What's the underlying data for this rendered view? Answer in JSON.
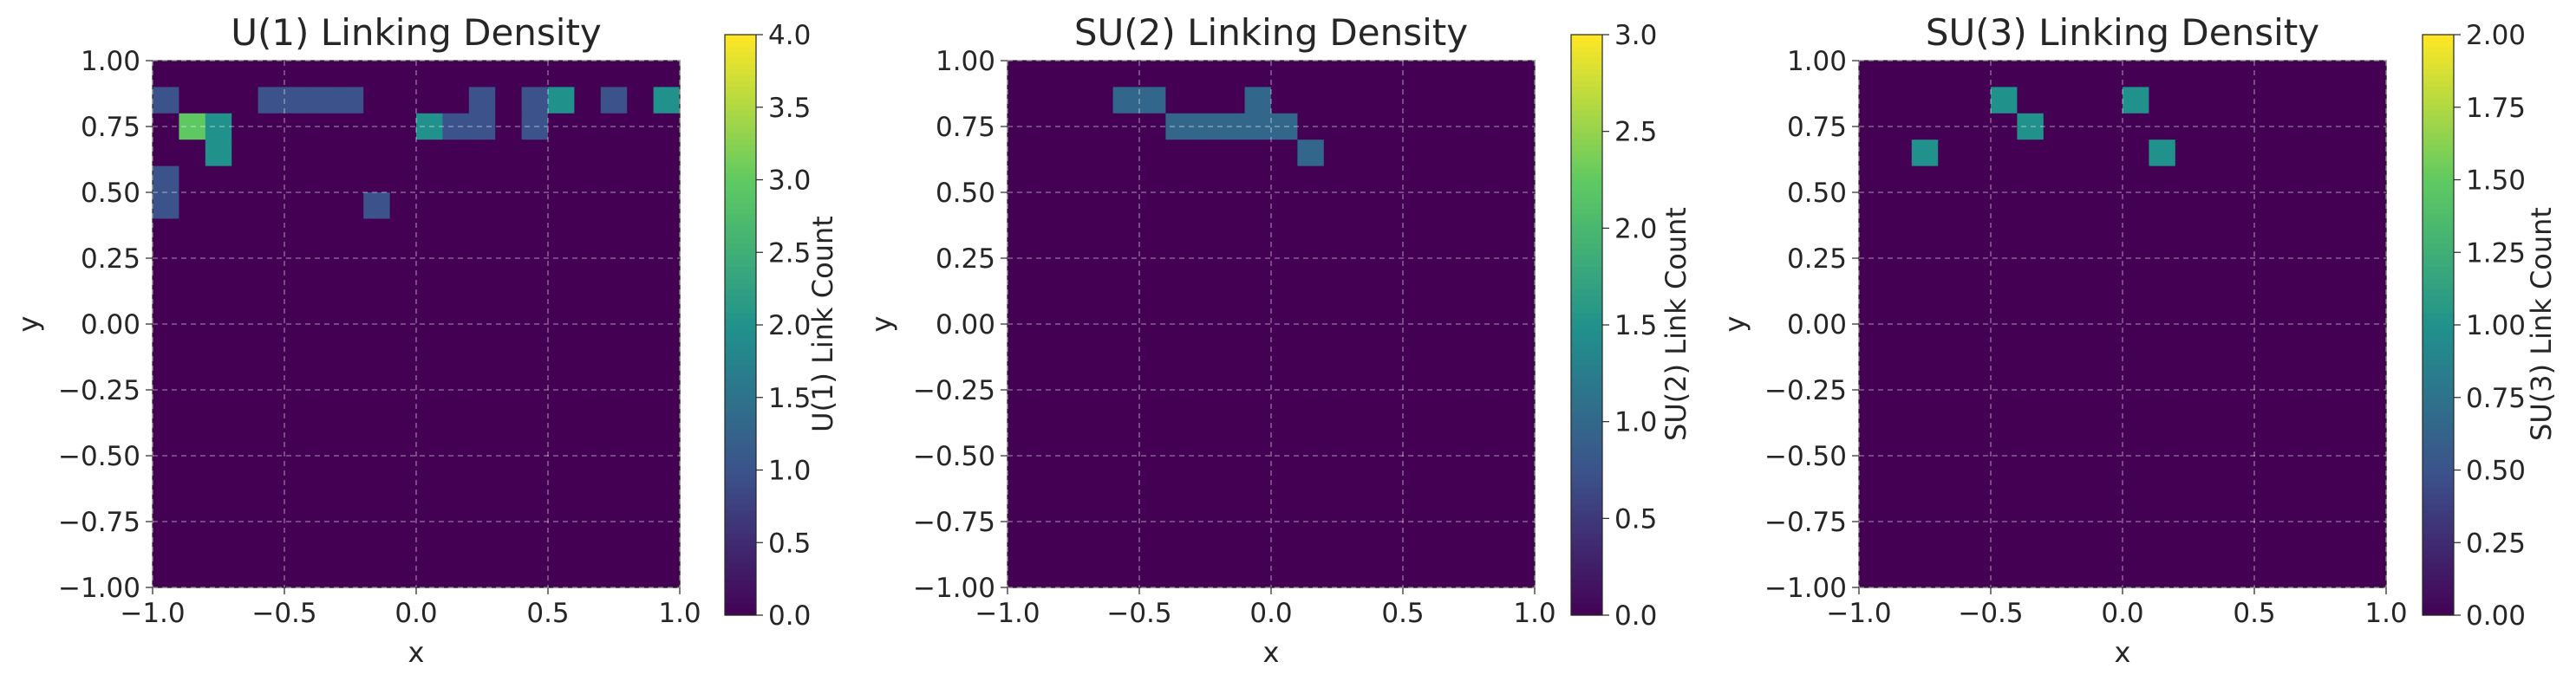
{
  "chart_data": [
    {
      "type": "heatmap",
      "title": "U(1) Linking Density",
      "xlabel": "x",
      "ylabel": "y",
      "colorbar_label": "U(1) Link Count",
      "colormap": "viridis",
      "vmin": 0,
      "vmax": 4,
      "xlim": [
        -1.0,
        1.0
      ],
      "ylim": [
        -1.0,
        1.0
      ],
      "bins": 20,
      "grid": true,
      "xticks": [
        "−1.0",
        "−0.5",
        "0.0",
        "0.5",
        "1.0"
      ],
      "yticks": [
        "−1.00",
        "−0.75",
        "−0.50",
        "−0.25",
        "0.00",
        "0.25",
        "0.50",
        "0.75",
        "1.00"
      ],
      "cbar_ticks": [
        "0.0",
        "0.5",
        "1.0",
        "1.5",
        "2.0",
        "2.5",
        "3.0",
        "3.5",
        "4.0"
      ],
      "grid_rows_top_to_bottom": [
        "00000000000000000000",
        "10001111000010120102",
        "03200000002110100000",
        "00200000000000000000",
        "10000000000000000000",
        "10000000100000000000",
        "00000000000000000000",
        "00000000000000000000",
        "00000000000000000000",
        "00000000000000000000",
        "00000000000000000000",
        "00000000000000000000",
        "00000000000000000000",
        "00000000000000000000",
        "00000000000000000000",
        "00000000000000000000",
        "00000000000000000000",
        "00000000000000000000",
        "00000000000000000000",
        "00000000000000000000"
      ]
    },
    {
      "type": "heatmap",
      "title": "SU(2) Linking Density",
      "xlabel": "x",
      "ylabel": "y",
      "colorbar_label": "SU(2) Link Count",
      "colormap": "viridis",
      "vmin": 0,
      "vmax": 3,
      "xlim": [
        -1.0,
        1.0
      ],
      "ylim": [
        -1.0,
        1.0
      ],
      "bins": 20,
      "grid": true,
      "xticks": [
        "−1.0",
        "−0.5",
        "0.0",
        "0.5",
        "1.0"
      ],
      "yticks": [
        "−1.00",
        "−0.75",
        "−0.50",
        "−0.25",
        "0.00",
        "0.25",
        "0.50",
        "0.75",
        "1.00"
      ],
      "cbar_ticks": [
        "0.0",
        "0.5",
        "1.0",
        "1.5",
        "2.0",
        "2.5",
        "3.0"
      ],
      "grid_rows_top_to_bottom": [
        "00000000000000000000",
        "00001100010000000000",
        "00000011111000000000",
        "00000000000100000000",
        "00000000000000000000",
        "00000000000000000000",
        "00000000000000000000",
        "00000000000000000000",
        "00000000000000000000",
        "00000000000000000000",
        "00000000000000000000",
        "00000000000000000000",
        "00000000000000000000",
        "00000000000000000000",
        "00000000000000000000",
        "00000000000000000000",
        "00000000000000000000",
        "00000000000000000000",
        "00000000000000000000",
        "00000000000000000000"
      ]
    },
    {
      "type": "heatmap",
      "title": "SU(3) Linking Density",
      "xlabel": "x",
      "ylabel": "y",
      "colorbar_label": "SU(3) Link Count",
      "colormap": "viridis",
      "vmin": 0,
      "vmax": 2,
      "xlim": [
        -1.0,
        1.0
      ],
      "ylim": [
        -1.0,
        1.0
      ],
      "bins": 20,
      "grid": true,
      "xticks": [
        "−1.0",
        "−0.5",
        "0.0",
        "0.5",
        "1.0"
      ],
      "yticks": [
        "−1.00",
        "−0.75",
        "−0.50",
        "−0.25",
        "0.00",
        "0.25",
        "0.50",
        "0.75",
        "1.00"
      ],
      "cbar_ticks": [
        "0.00",
        "0.25",
        "0.50",
        "0.75",
        "1.00",
        "1.25",
        "1.50",
        "1.75",
        "2.00"
      ],
      "grid_rows_top_to_bottom": [
        "00000000000000000000",
        "00000100001000000000",
        "00000010000000000000",
        "00100000000100000000",
        "00000000000000000000",
        "00000000000000000000",
        "00000000000000000000",
        "00000000000000000000",
        "00000000000000000000",
        "00000000000000000000",
        "00000000000000000000",
        "00000000000000000000",
        "00000000000000000000",
        "00000000000000000000",
        "00000000000000000000",
        "00000000000000000000",
        "00000000000000000000",
        "00000000000000000000",
        "00000000000000000000",
        "00000000000000000000"
      ]
    }
  ]
}
